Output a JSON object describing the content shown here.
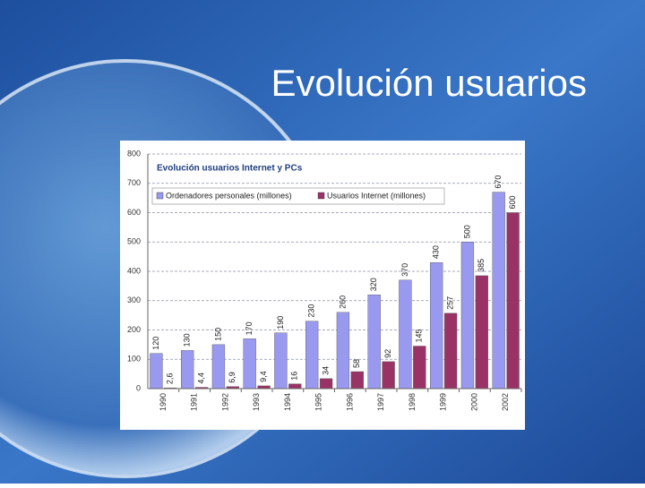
{
  "slide_title": "Evolución usuarios",
  "chart_data": {
    "type": "bar",
    "title": "Evolución usuarios Internet y PCs",
    "categories": [
      "1990",
      "1991",
      "1992",
      "1993",
      "1994",
      "1995",
      "1996",
      "1997",
      "1998",
      "1999",
      "2000",
      "2002"
    ],
    "series": [
      {
        "name": "Ordenadores personales (millones)",
        "color": "#9999f0",
        "values": [
          120,
          130,
          150,
          170,
          190,
          230,
          260,
          320,
          370,
          430,
          500,
          670
        ]
      },
      {
        "name": "Usuarios Internet (millones)",
        "color": "#993366",
        "values": [
          2.6,
          4.4,
          6.9,
          9.4,
          16,
          34,
          58,
          92,
          145,
          257,
          385,
          600
        ],
        "value_labels": [
          "2,6",
          "4,4",
          "6,9",
          "9,4",
          "16",
          "34",
          "58",
          "92",
          "145",
          "257",
          "385",
          "600"
        ]
      }
    ],
    "ylim": [
      0,
      800
    ],
    "yticks": [
      0,
      100,
      200,
      300,
      400,
      500,
      600,
      700,
      800
    ],
    "grid": true,
    "legend": "top"
  }
}
